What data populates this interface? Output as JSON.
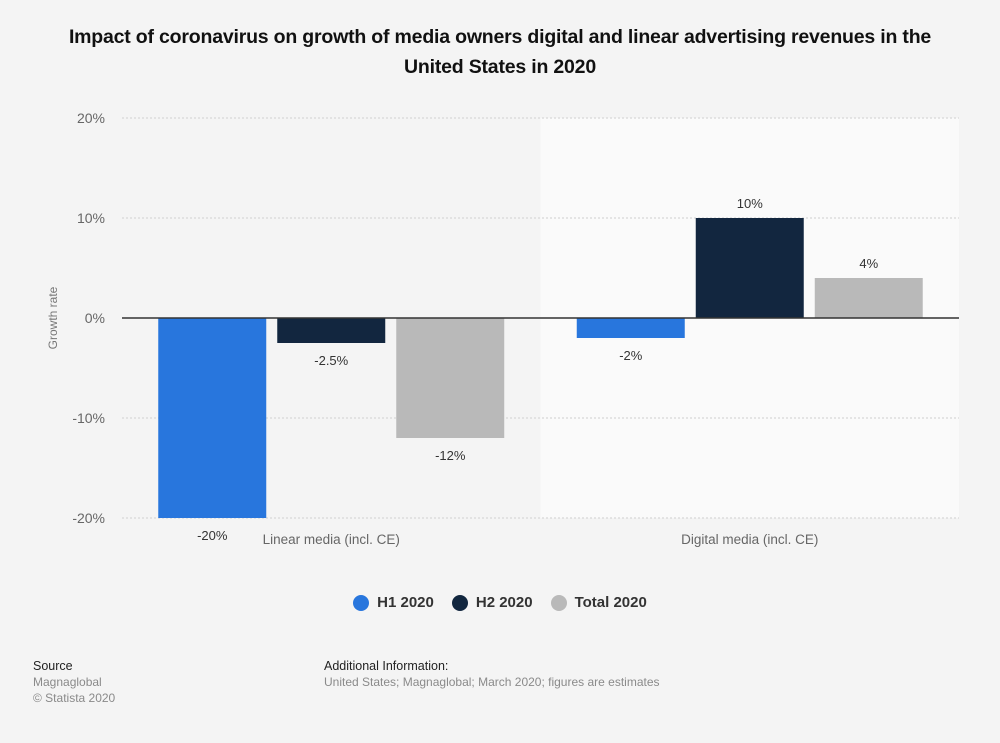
{
  "chart_data": {
    "type": "bar",
    "title": "Impact of coronavirus on growth of media owners digital and linear advertising revenues in the United States in 2020",
    "xlabel": "",
    "ylabel": "Growth rate",
    "categories": [
      "Linear media (incl. CE)",
      "Digital media (incl. CE)"
    ],
    "series": [
      {
        "name": "H1 2020",
        "color": "#2876dd",
        "values": [
          -20,
          -2
        ],
        "labels": [
          "-20%",
          "-2%"
        ]
      },
      {
        "name": "H2 2020",
        "color": "#12263f",
        "values": [
          -2.5,
          10
        ],
        "labels": [
          "-2.5%",
          "10%"
        ]
      },
      {
        "name": "Total 2020",
        "color": "#b9b9b9",
        "values": [
          -12,
          4
        ],
        "labels": [
          "-12%",
          "4%"
        ]
      }
    ],
    "ylim": [
      -20,
      20
    ],
    "yticks": [
      20,
      10,
      0,
      -10,
      -20
    ],
    "ytick_labels": [
      "20%",
      "10%",
      "0%",
      "-10%",
      "-20%"
    ],
    "grid": true,
    "legend_position": "bottom-center"
  },
  "footer": {
    "source_heading": "Source",
    "source_lines": [
      "Magnaglobal",
      "© Statista 2020"
    ],
    "info_heading": "Additional Information:",
    "info_text": "United States; Magnaglobal; March 2020; figures are estimates"
  }
}
